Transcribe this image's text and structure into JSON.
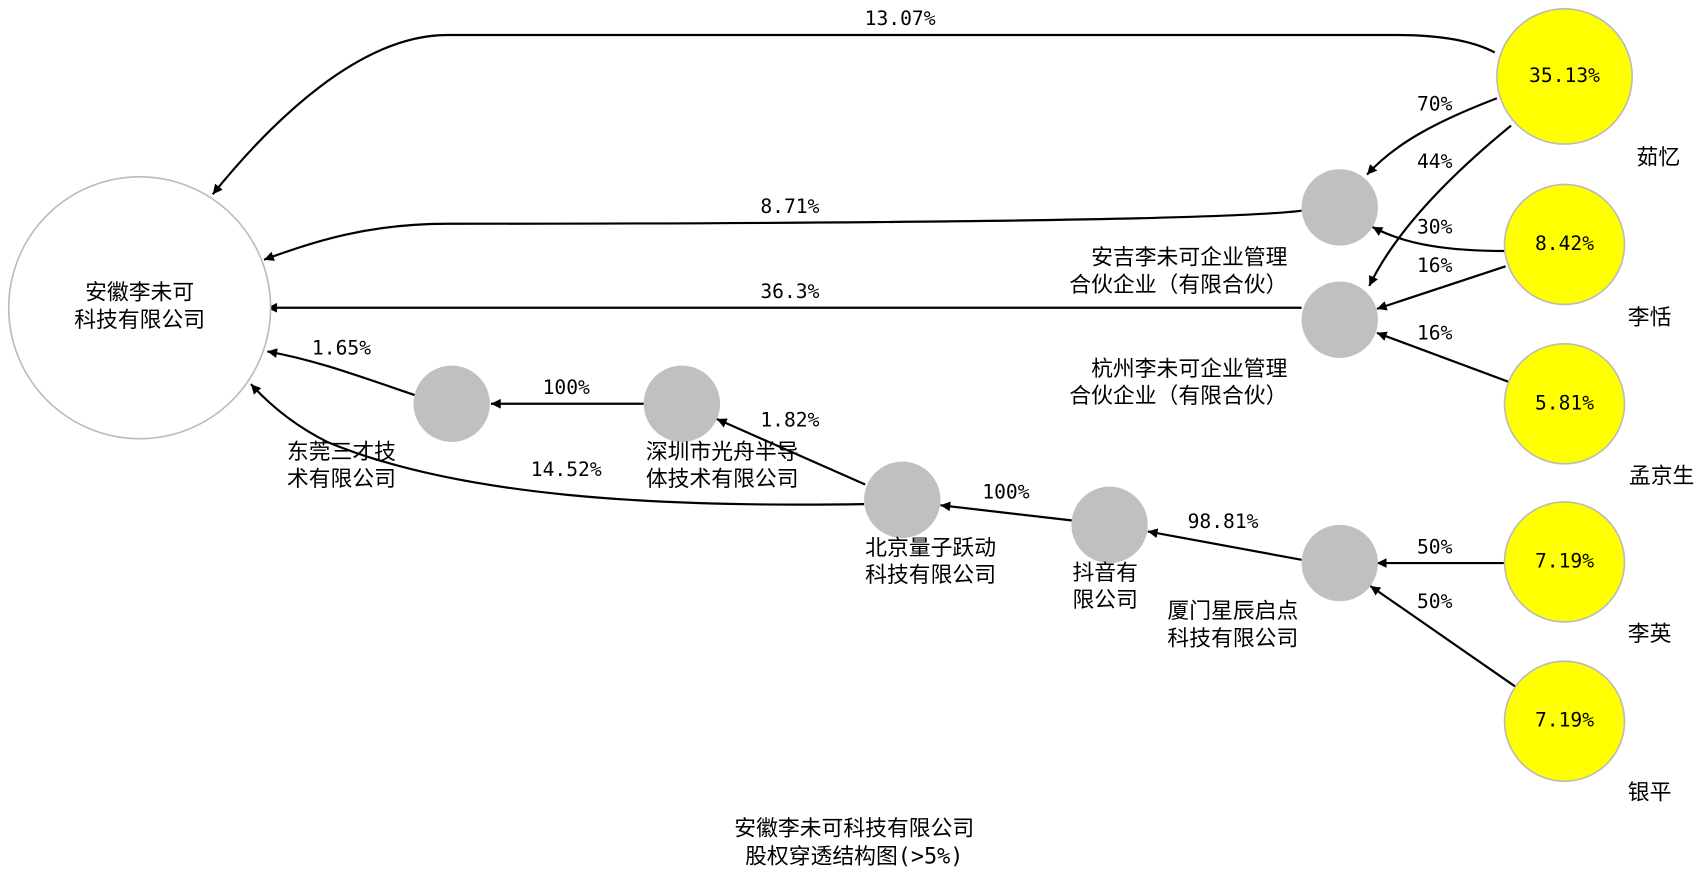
{
  "nodes": [
    {
      "label": [
        "安徽李未可",
        "科技有限公司"
      ]
    },
    {
      "label": [
        "安吉李未可企业管理",
        "合伙企业（有限合伙）"
      ]
    },
    {
      "label": [
        "杭州李未可企业管理",
        "合伙企业（有限合伙）"
      ]
    },
    {
      "label": [
        "东莞三才技",
        "术有限公司"
      ]
    },
    {
      "label": [
        "深圳市光舟半导",
        "体技术有限公司"
      ]
    },
    {
      "label": [
        "北京量子跃动",
        "科技有限公司"
      ]
    },
    {
      "label": [
        "抖音有",
        "限公司"
      ]
    },
    {
      "label": [
        "厦门星辰启点",
        "科技有限公司"
      ]
    }
  ],
  "persons": [
    {
      "name": "茹忆",
      "share": "35.13%"
    },
    {
      "name": "李恬",
      "share": "8.42%"
    },
    {
      "name": "孟京生",
      "share": "5.81%"
    },
    {
      "name": "李英",
      "share": "7.19%"
    },
    {
      "name": "银平",
      "share": "7.19%"
    }
  ],
  "edges": [
    {
      "label": "13.07%"
    },
    {
      "label": "70%"
    },
    {
      "label": "44%"
    },
    {
      "label": "8.71%"
    },
    {
      "label": "30%"
    },
    {
      "label": "16%"
    },
    {
      "label": "16%"
    },
    {
      "label": "36.3%"
    },
    {
      "label": "1.65%"
    },
    {
      "label": "100%"
    },
    {
      "label": "1.82%"
    },
    {
      "label": "14.52%"
    },
    {
      "label": "100%"
    },
    {
      "label": "98.81%"
    },
    {
      "label": "50%"
    },
    {
      "label": "50%"
    }
  ],
  "title": [
    "安徽李未可科技有限公司",
    "股权穿透结构图(>5%)"
  ]
}
